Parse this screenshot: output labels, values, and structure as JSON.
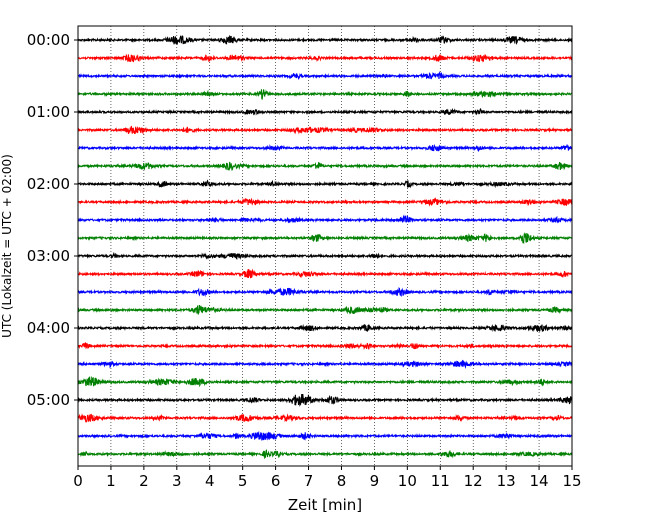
{
  "chart_data": {
    "type": "line",
    "title": "",
    "xlabel": "Zeit  [min]",
    "ylabel": "UTC (Lokalzeit = UTC + 02:00)",
    "xlim": [
      0,
      15
    ],
    "x_ticks": [
      0,
      1,
      2,
      3,
      4,
      5,
      6,
      7,
      8,
      9,
      10,
      11,
      12,
      13,
      14,
      15
    ],
    "grid": "vertical dotted at each minute",
    "trace_interval_min": 15,
    "trace_colors": [
      "#000000",
      "#ff0000",
      "#0000ff",
      "#008000"
    ],
    "hour_labels": [
      {
        "trace_index": 0,
        "label": "00:00"
      },
      {
        "trace_index": 4,
        "label": "01:00"
      },
      {
        "trace_index": 8,
        "label": "02:00"
      },
      {
        "trace_index": 12,
        "label": "03:00"
      },
      {
        "trace_index": 16,
        "label": "04:00"
      },
      {
        "trace_index": 20,
        "label": "05:00"
      }
    ],
    "traces": [
      {
        "start": "00:00"
      },
      {
        "start": "00:15"
      },
      {
        "start": "00:30"
      },
      {
        "start": "00:45"
      },
      {
        "start": "01:00"
      },
      {
        "start": "01:15"
      },
      {
        "start": "01:30"
      },
      {
        "start": "01:45"
      },
      {
        "start": "02:00"
      },
      {
        "start": "02:15"
      },
      {
        "start": "02:30"
      },
      {
        "start": "02:45"
      },
      {
        "start": "03:00"
      },
      {
        "start": "03:15"
      },
      {
        "start": "03:30"
      },
      {
        "start": "03:45"
      },
      {
        "start": "04:00"
      },
      {
        "start": "04:15"
      },
      {
        "start": "04:30"
      },
      {
        "start": "04:45"
      },
      {
        "start": "05:00"
      },
      {
        "start": "05:15"
      },
      {
        "start": "05:30"
      },
      {
        "start": "05:45"
      }
    ]
  }
}
